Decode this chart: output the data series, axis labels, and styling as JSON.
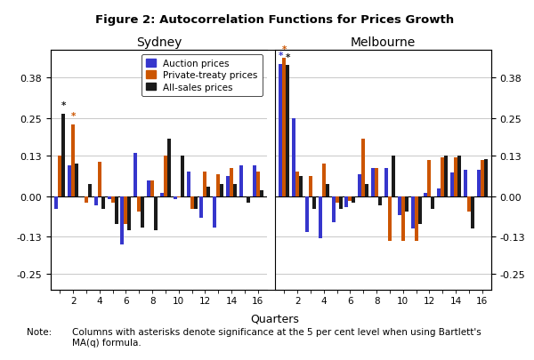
{
  "title": "Figure 2: Autocorrelation Functions for Prices Growth",
  "xlabel": "Quarters",
  "yticks": [
    -0.25,
    -0.13,
    0.0,
    0.13,
    0.25,
    0.38
  ],
  "ylim": [
    -0.3,
    0.47
  ],
  "sydney_label": "Sydney",
  "melbourne_label": "Melbourne",
  "n_quarters": 16,
  "sydney": {
    "auction": [
      -0.04,
      0.1,
      0.0,
      -0.03,
      -0.01,
      -0.155,
      0.14,
      0.05,
      0.01,
      -0.01,
      0.08,
      -0.07,
      -0.1,
      0.065,
      0.1,
      0.1
    ],
    "private_treaty": [
      0.13,
      0.23,
      -0.02,
      0.11,
      -0.02,
      -0.09,
      -0.05,
      0.05,
      0.13,
      -0.005,
      -0.04,
      0.08,
      0.07,
      0.09,
      0.0,
      0.08
    ],
    "all_sales": [
      0.265,
      0.105,
      0.04,
      -0.04,
      -0.09,
      -0.11,
      -0.1,
      -0.11,
      0.185,
      0.13,
      -0.04,
      0.03,
      0.04,
      0.04,
      -0.02,
      0.02
    ]
  },
  "melbourne": {
    "auction": [
      0.425,
      0.25,
      -0.115,
      -0.135,
      -0.085,
      -0.035,
      0.07,
      0.09,
      0.09,
      -0.06,
      -0.105,
      0.01,
      0.025,
      0.075,
      0.085,
      0.085
    ],
    "private_treaty": [
      0.445,
      0.08,
      0.065,
      0.105,
      -0.02,
      -0.015,
      0.185,
      0.09,
      -0.145,
      -0.145,
      -0.145,
      0.115,
      0.125,
      0.125,
      -0.05,
      0.115
    ],
    "all_sales": [
      0.42,
      0.065,
      -0.04,
      0.04,
      -0.04,
      -0.02,
      0.04,
      -0.03,
      0.13,
      -0.05,
      -0.09,
      -0.04,
      0.13,
      0.13,
      -0.105,
      0.12
    ]
  },
  "sydney_asterisks": {
    "auction": [],
    "private_treaty": [
      2
    ],
    "all_sales": [
      1
    ]
  },
  "melbourne_asterisks": {
    "auction": [
      1
    ],
    "private_treaty": [
      1
    ],
    "all_sales": [
      1
    ]
  },
  "colors": {
    "auction": "#3636CC",
    "private_treaty": "#CC5500",
    "all_sales": "#1a1a1a"
  },
  "bar_width": 0.27,
  "ytick_labels": [
    "-0.25",
    "-0.13",
    "0.00",
    "0.13",
    "0.25",
    "0.38"
  ]
}
